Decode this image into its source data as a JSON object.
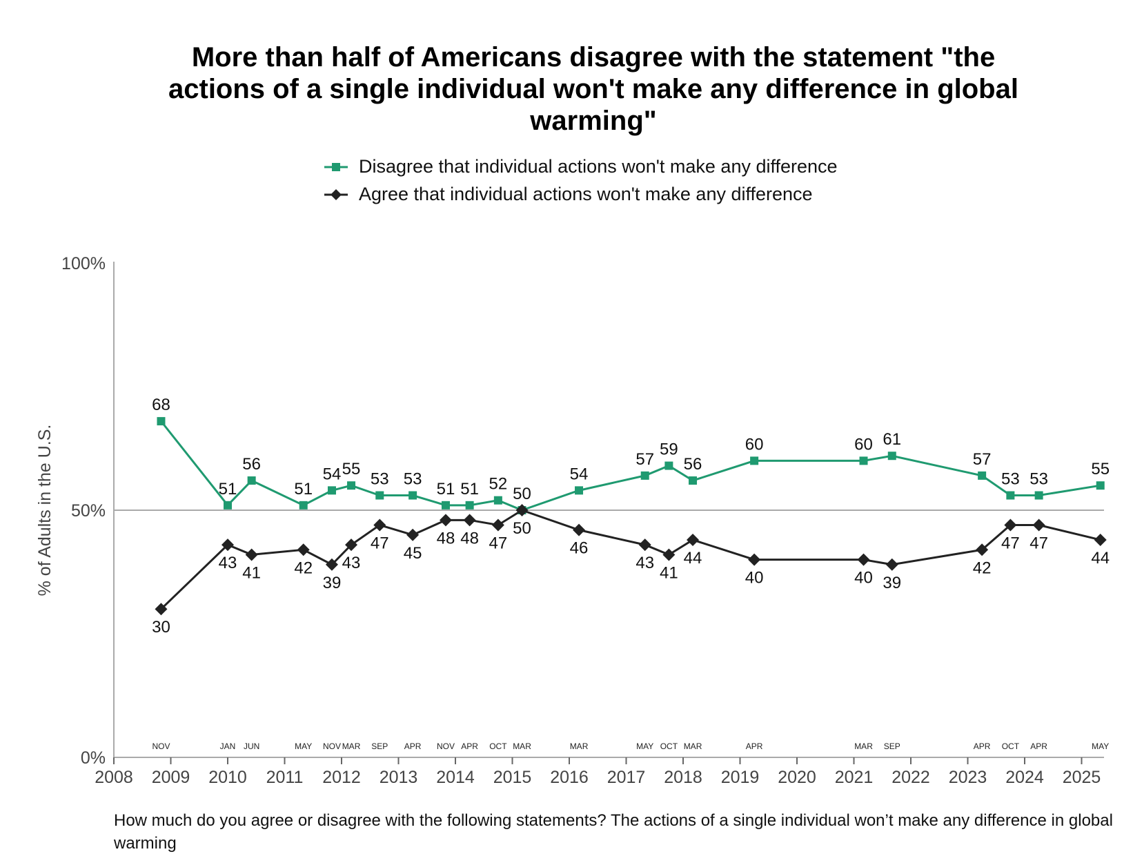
{
  "title": "More than half of Americans disagree with the statement \"the actions of a single individual won't make any difference in global warming\"",
  "footnote": "How much do you agree or disagree with the following statements? The actions of a single individual won’t make any difference in global warming",
  "chart_data": {
    "type": "line",
    "title": "More than half of Americans disagree with the statement \"the actions of a single individual won't make any difference in global warming\"",
    "ylabel": "% of Adults in the U.S.",
    "xlabel": "",
    "ylim": [
      0,
      100
    ],
    "yticks": [
      "0%",
      "50%",
      "100%"
    ],
    "xticks": [
      "2008",
      "2009",
      "2010",
      "2011",
      "2012",
      "2013",
      "2014",
      "2015",
      "2016",
      "2017",
      "2018",
      "2019",
      "2020",
      "2021",
      "2022",
      "2023",
      "2024",
      "2025"
    ],
    "reference_line": 50,
    "legend_position": "top",
    "x": [
      2008.83,
      2010.0,
      2010.42,
      2011.33,
      2011.83,
      2012.17,
      2012.67,
      2013.25,
      2013.83,
      2014.25,
      2014.75,
      2015.17,
      2016.17,
      2017.33,
      2017.75,
      2018.17,
      2019.25,
      2021.17,
      2021.67,
      2023.25,
      2023.75,
      2024.25,
      2025.33
    ],
    "month_labels": [
      "NOV",
      "JAN",
      "JUN",
      "MAY",
      "NOV",
      "MAR",
      "SEP",
      "APR",
      "NOV",
      "APR",
      "OCT",
      "MAR",
      "MAR",
      "MAY",
      "OCT",
      "MAR",
      "APR",
      "MAR",
      "SEP",
      "APR",
      "OCT",
      "APR",
      "MAY"
    ],
    "series": [
      {
        "name": "Disagree that individual actions won't make any difference",
        "color": "#1f9a70",
        "marker": "square",
        "values": [
          68,
          51,
          56,
          51,
          54,
          55,
          53,
          53,
          51,
          51,
          52,
          50,
          54,
          57,
          59,
          56,
          60,
          60,
          61,
          57,
          53,
          53,
          55
        ]
      },
      {
        "name": "Agree that individual actions won't make any difference",
        "color": "#222222",
        "marker": "diamond",
        "values": [
          30,
          43,
          41,
          42,
          39,
          43,
          47,
          45,
          48,
          48,
          47,
          50,
          46,
          43,
          41,
          44,
          40,
          40,
          39,
          42,
          47,
          47,
          44
        ]
      }
    ]
  }
}
